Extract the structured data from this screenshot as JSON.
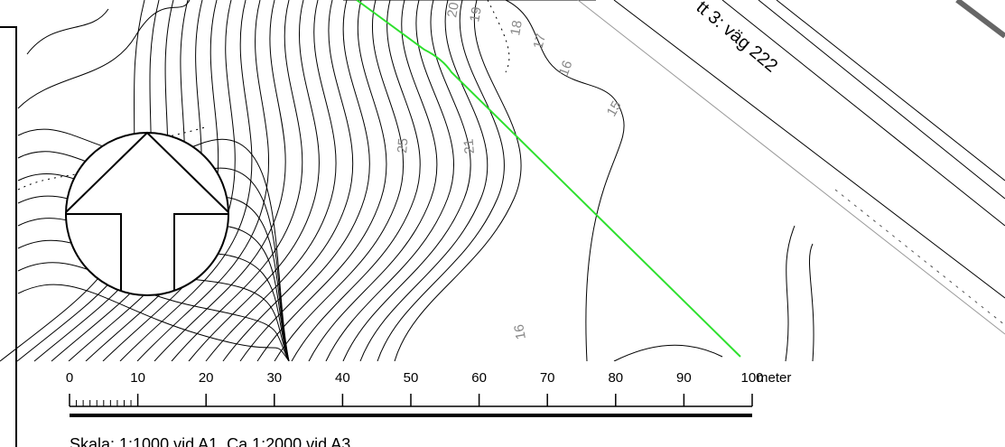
{
  "map": {
    "road_label": "tt 3: väg 222",
    "contour_labels": [
      "20",
      "19",
      "18",
      "17",
      "16",
      "15",
      "25",
      "21",
      "16"
    ],
    "scale_bar": {
      "labels": [
        "0",
        "10",
        "20",
        "30",
        "40",
        "50",
        "60",
        "70",
        "80",
        "90",
        "100"
      ],
      "unit": "meter"
    },
    "scale_text": "Skala: 1:1000 vid A1, Ca 1:2000 vid A3"
  }
}
